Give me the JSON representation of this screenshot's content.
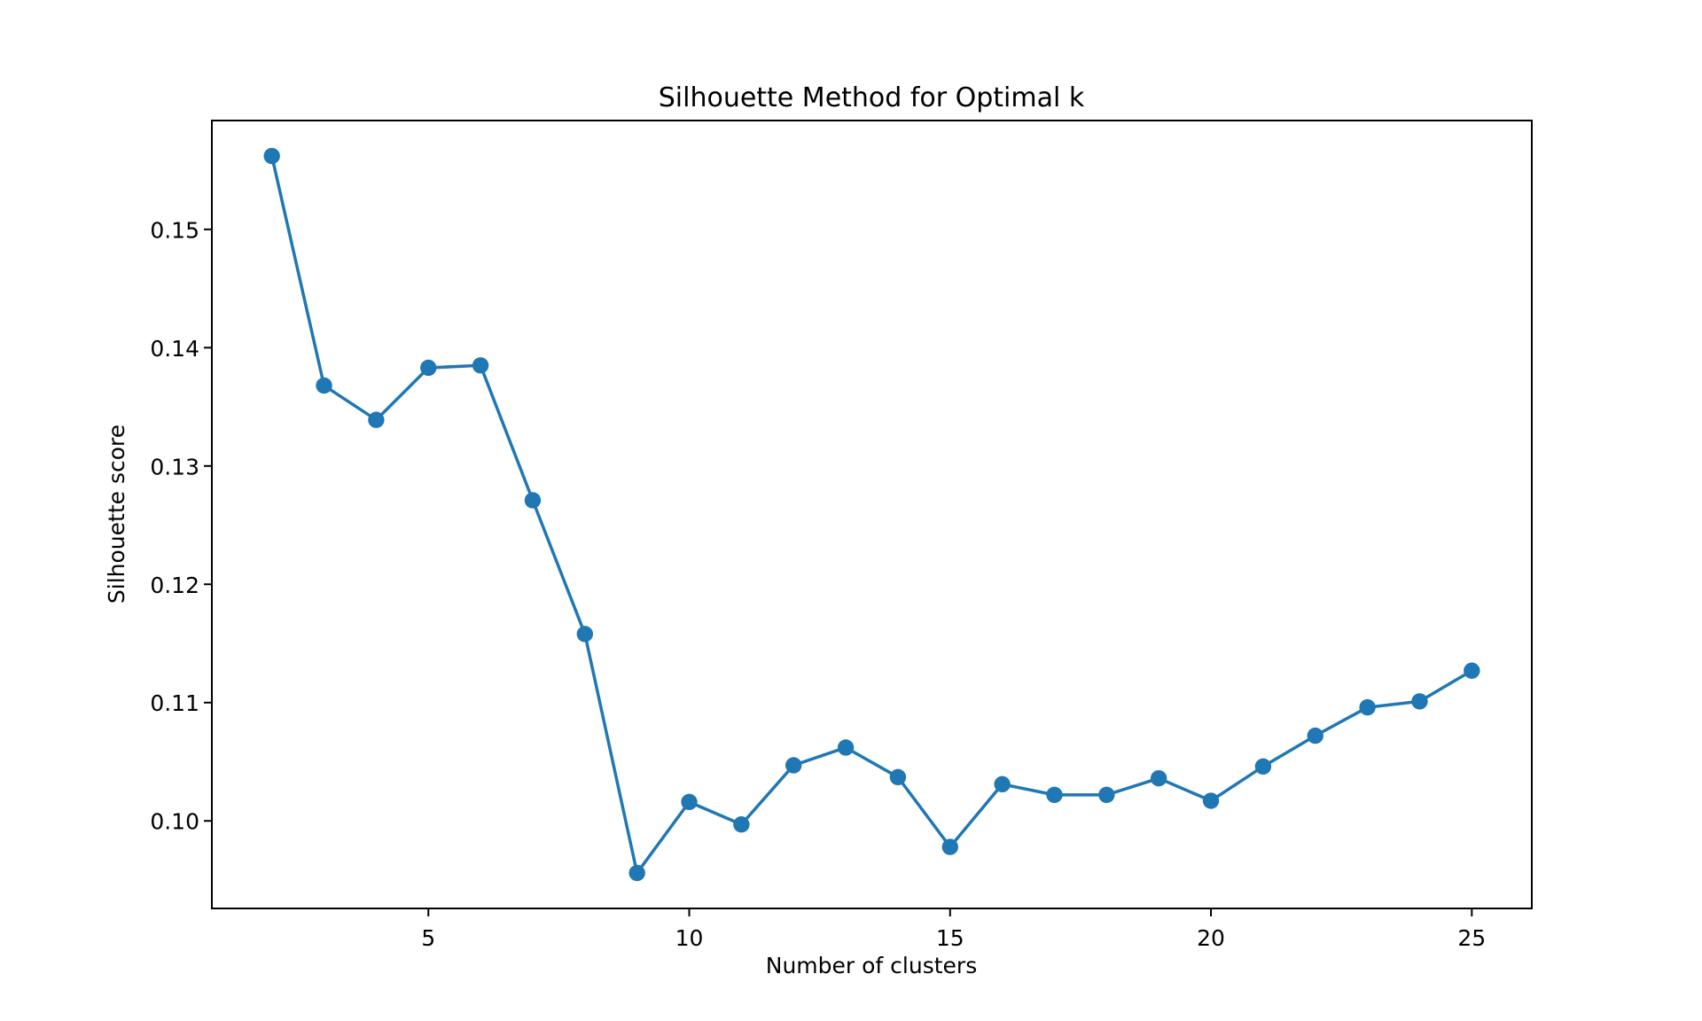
{
  "figure": {
    "background_color": "#ffffff",
    "spine_color": "#000000",
    "accent_color": "#1f77b4"
  },
  "chart_data": {
    "type": "line",
    "title": "Silhouette Method for Optimal k",
    "xlabel": "Number of clusters",
    "ylabel": "Silhouette score",
    "grid": false,
    "legend": false,
    "xlim": [
      0.85,
      26.15
    ],
    "ylim": [
      0.0926,
      0.1592
    ],
    "xticks": {
      "values": [
        5,
        10,
        15,
        20,
        25
      ],
      "labels": [
        "5",
        "10",
        "15",
        "20",
        "25"
      ]
    },
    "yticks": {
      "values": [
        0.1,
        0.11,
        0.12,
        0.13,
        0.14,
        0.15
      ],
      "labels": [
        "0.10",
        "0.11",
        "0.12",
        "0.13",
        "0.14",
        "0.15"
      ]
    },
    "series": [
      {
        "name": "Silhouette score",
        "color": "#1f77b4",
        "marker": "o",
        "x": [
          2,
          3,
          4,
          5,
          6,
          7,
          8,
          9,
          10,
          11,
          12,
          13,
          14,
          15,
          16,
          17,
          18,
          19,
          20,
          21,
          22,
          23,
          24,
          25
        ],
        "y": [
          0.1562,
          0.1368,
          0.1339,
          0.1383,
          0.1385,
          0.1271,
          0.1158,
          0.0956,
          0.1016,
          0.0997,
          0.1047,
          0.1062,
          0.1037,
          0.0978,
          0.1031,
          0.1022,
          0.1022,
          0.1036,
          0.1017,
          0.1046,
          0.1072,
          0.1096,
          0.1101,
          0.1127
        ]
      }
    ]
  }
}
